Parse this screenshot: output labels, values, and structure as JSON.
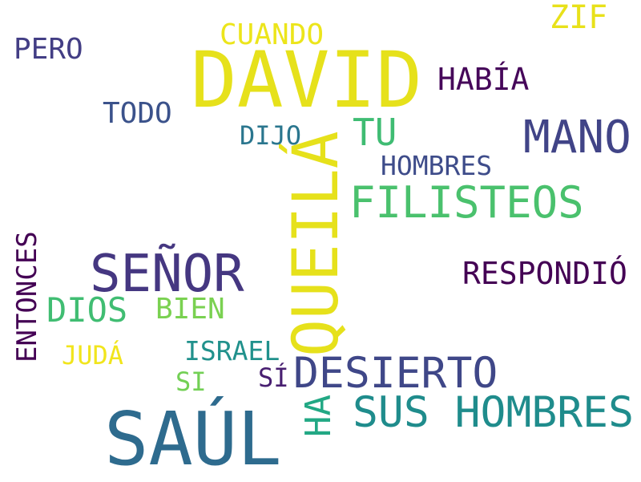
{
  "words": {
    "david": {
      "text": "DAVID",
      "color": "#e6e11b"
    },
    "saul": {
      "text": "SAÚL",
      "color": "#2e6b8e"
    },
    "queila": {
      "text": "QUEILÁ",
      "color": "#e6e11b"
    },
    "senor": {
      "text": "SEÑOR",
      "color": "#453781"
    },
    "mano": {
      "text": "MANO",
      "color": "#414487"
    },
    "filisteos": {
      "text": "FILISTEOS",
      "color": "#4ac16d"
    },
    "desierto": {
      "text": "DESIERTO",
      "color": "#3f4788"
    },
    "sus_hombres": {
      "text": "SUS HOMBRES",
      "color": "#1f8c8c"
    },
    "tu": {
      "text": "TU",
      "color": "#3fbc73"
    },
    "dios": {
      "text": "DIOS",
      "color": "#40bd72"
    },
    "respondio": {
      "text": "RESPONDIÓ",
      "color": "#440154"
    },
    "habia": {
      "text": "HABÍA",
      "color": "#46075a"
    },
    "zif": {
      "text": "ZIF",
      "color": "#e8e11a"
    },
    "cuando": {
      "text": "CUANDO",
      "color": "#ece51b"
    },
    "pero": {
      "text": "PERO",
      "color": "#433e85"
    },
    "todo": {
      "text": "TODO",
      "color": "#3b528b"
    },
    "dijo": {
      "text": "DIJO",
      "color": "#2a768e"
    },
    "hombres": {
      "text": "HOMBRES",
      "color": "#3e4c8a"
    },
    "bien": {
      "text": "BIEN",
      "color": "#7ad151"
    },
    "israel": {
      "text": "ISRAEL",
      "color": "#21918c"
    },
    "juda": {
      "text": "JUDÁ",
      "color": "#f1e51d"
    },
    "si": {
      "text": "SI",
      "color": "#73d055"
    },
    "si_accent": {
      "text": "SÍ",
      "color": "#481f71"
    },
    "ha": {
      "text": "HA",
      "color": "#22a884"
    },
    "entonces": {
      "text": "ENTONCES",
      "color": "#440154"
    }
  }
}
